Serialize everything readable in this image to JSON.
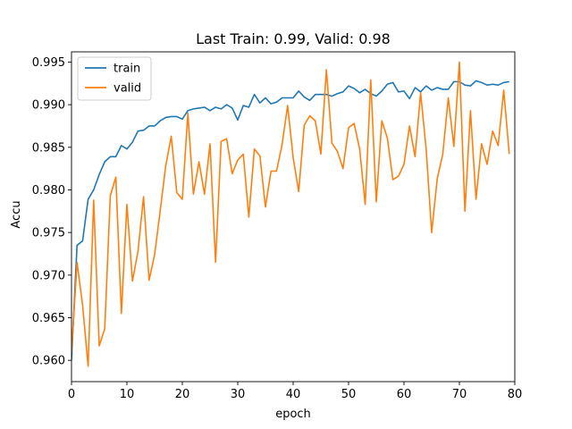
{
  "chart_data": {
    "type": "line",
    "title": "Last Train: 0.99, Valid: 0.98",
    "xlabel": "epoch",
    "ylabel": "Accu",
    "xlim": [
      0,
      80
    ],
    "ylim": [
      0.9575,
      0.9962
    ],
    "x_ticks": [
      0,
      10,
      20,
      30,
      40,
      50,
      60,
      70,
      80
    ],
    "x_tick_labels": [
      "0",
      "10",
      "20",
      "30",
      "40",
      "50",
      "60",
      "70",
      "80"
    ],
    "y_ticks": [
      0.96,
      0.965,
      0.97,
      0.975,
      0.98,
      0.985,
      0.99,
      0.995
    ],
    "y_tick_labels": [
      "0.960",
      "0.965",
      "0.970",
      "0.975",
      "0.980",
      "0.985",
      "0.990",
      "0.995"
    ],
    "grid": false,
    "legend_position": "upper-left",
    "x": [
      0,
      1,
      2,
      3,
      4,
      5,
      6,
      7,
      8,
      9,
      10,
      11,
      12,
      13,
      14,
      15,
      16,
      17,
      18,
      19,
      20,
      21,
      22,
      23,
      24,
      25,
      26,
      27,
      28,
      29,
      30,
      31,
      32,
      33,
      34,
      35,
      36,
      37,
      38,
      39,
      40,
      41,
      42,
      43,
      44,
      45,
      46,
      47,
      48,
      49,
      50,
      51,
      52,
      53,
      54,
      55,
      56,
      57,
      58,
      59,
      60,
      61,
      62,
      63,
      64,
      65,
      66,
      67,
      68,
      69,
      70,
      71,
      72,
      73,
      74,
      75,
      76,
      77,
      78,
      79
    ],
    "series": [
      {
        "name": "train",
        "color": "#1f77b4",
        "values": [
          0.96,
          0.9735,
          0.974,
          0.9789,
          0.98,
          0.9818,
          0.9833,
          0.9839,
          0.9839,
          0.9852,
          0.9848,
          0.9856,
          0.9869,
          0.987,
          0.9875,
          0.9875,
          0.9881,
          0.9885,
          0.9886,
          0.9886,
          0.9883,
          0.9893,
          0.9895,
          0.9896,
          0.9897,
          0.9893,
          0.9897,
          0.9895,
          0.99,
          0.9896,
          0.9882,
          0.9899,
          0.9897,
          0.9912,
          0.9902,
          0.9908,
          0.9901,
          0.9903,
          0.9908,
          0.9908,
          0.9908,
          0.9916,
          0.9909,
          0.9905,
          0.9912,
          0.9912,
          0.9912,
          0.991,
          0.9913,
          0.9915,
          0.9922,
          0.9919,
          0.9914,
          0.9918,
          0.9913,
          0.991,
          0.9916,
          0.9924,
          0.9926,
          0.9915,
          0.9916,
          0.9907,
          0.992,
          0.9915,
          0.9922,
          0.9917,
          0.992,
          0.9918,
          0.9918,
          0.9927,
          0.9927,
          0.9923,
          0.9922,
          0.9928,
          0.9926,
          0.9923,
          0.9924,
          0.9923,
          0.9926,
          0.9927
        ]
      },
      {
        "name": "valid",
        "color": "#ff7f0e",
        "values": [
          0.961,
          0.9715,
          0.9665,
          0.9593,
          0.9788,
          0.9617,
          0.9637,
          0.9793,
          0.9815,
          0.9655,
          0.9783,
          0.9693,
          0.9728,
          0.9792,
          0.9694,
          0.9724,
          0.9775,
          0.9828,
          0.9863,
          0.9797,
          0.9789,
          0.989,
          0.9795,
          0.9833,
          0.9795,
          0.9854,
          0.9715,
          0.9857,
          0.986,
          0.9819,
          0.9835,
          0.9842,
          0.9768,
          0.9848,
          0.984,
          0.978,
          0.9822,
          0.9822,
          0.9853,
          0.9899,
          0.9838,
          0.9798,
          0.9876,
          0.9887,
          0.9881,
          0.9842,
          0.9941,
          0.9855,
          0.9845,
          0.9825,
          0.9873,
          0.9878,
          0.9848,
          0.9783,
          0.9929,
          0.9786,
          0.9881,
          0.9861,
          0.9812,
          0.9816,
          0.983,
          0.9875,
          0.9839,
          0.9914,
          0.9848,
          0.975,
          0.9813,
          0.9842,
          0.9908,
          0.9851,
          0.995,
          0.9775,
          0.9893,
          0.9789,
          0.9854,
          0.983,
          0.9869,
          0.9852,
          0.9917,
          0.9842
        ]
      }
    ]
  }
}
